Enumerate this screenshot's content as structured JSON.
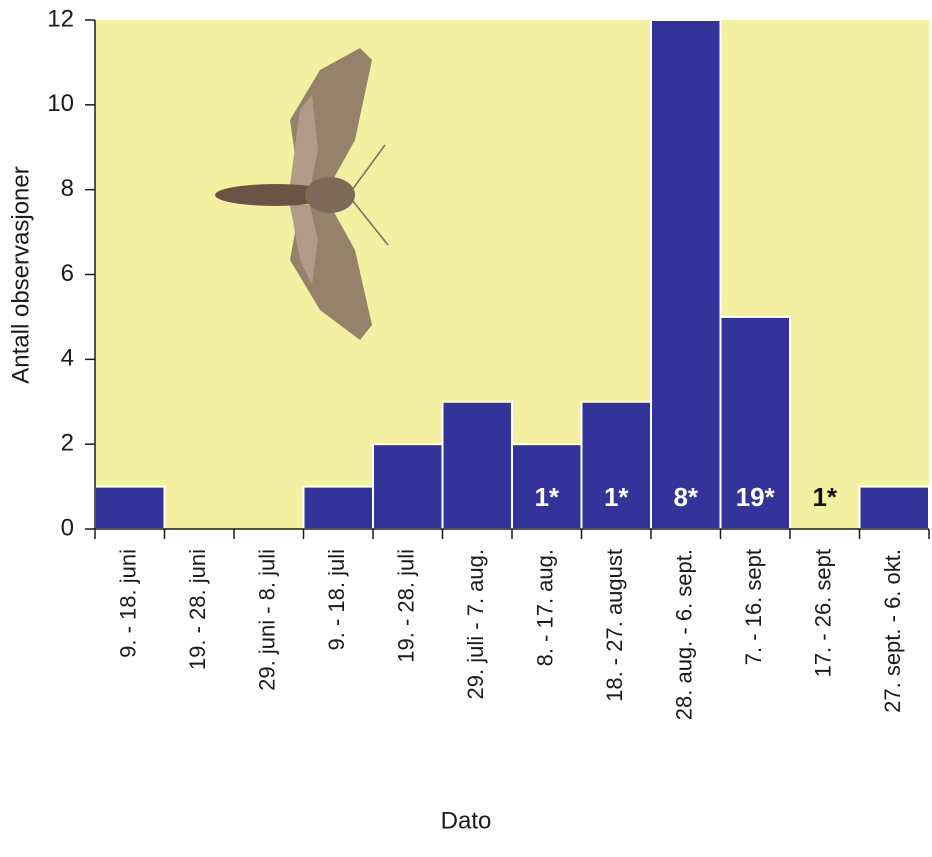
{
  "chart_data": {
    "type": "bar",
    "x_label": "Dato",
    "y_label": "Antall observasjoner",
    "categories": [
      "9. - 18. juni",
      "19. - 28. juni",
      "29. juni - 8. juli",
      "9. - 18. juli",
      "19. - 28. juli",
      "29. juli  - 7. aug.",
      "8.  - 17. aug.",
      "18.  - 27. august",
      "28. aug. - 6.  sept.",
      "7. - 16.  sept",
      "17. - 26.  sept",
      "27. sept.  - 6. okt."
    ],
    "values": [
      1,
      0,
      0,
      1,
      2,
      3,
      2,
      3,
      12,
      5,
      0,
      1
    ],
    "annotations": [
      null,
      null,
      null,
      null,
      null,
      null,
      "1*",
      "1*",
      "8*",
      "19*",
      "1*",
      null
    ],
    "color": "#333399",
    "background": "#f4f0a2",
    "ylim": [
      0,
      12
    ],
    "yticks": [
      0,
      2,
      4,
      6,
      8,
      10,
      12
    ]
  }
}
